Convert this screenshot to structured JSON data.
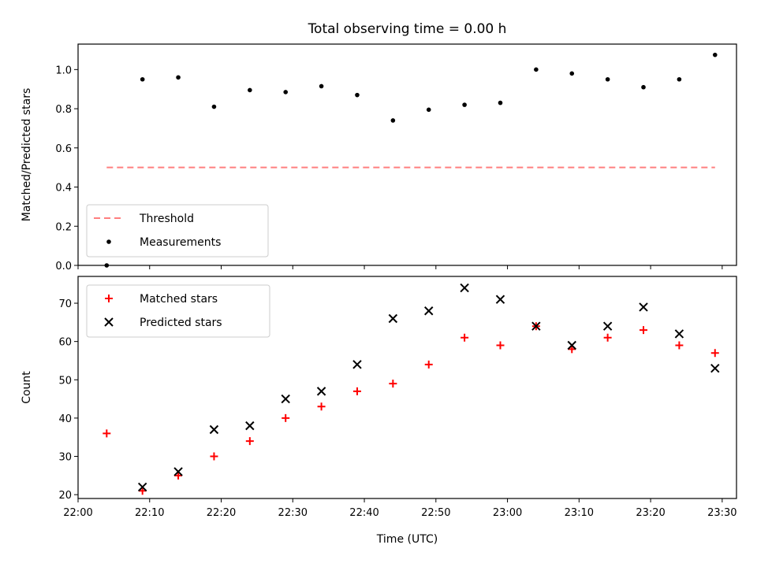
{
  "chart_data": [
    {
      "type": "scatter",
      "title": "Total observing time = 0.00 h",
      "ylabel": "Matched/Predicted stars",
      "xlabel": "",
      "xlim": [
        "22:00",
        "23:32"
      ],
      "ylim": [
        0,
        1.13
      ],
      "yticks": [
        "0.0",
        "0.2",
        "0.4",
        "0.6",
        "0.8",
        "1.0"
      ],
      "grid": false,
      "legend_position": "lower-left",
      "x": [
        "22:04",
        "22:09",
        "22:14",
        "22:19",
        "22:24",
        "22:29",
        "22:34",
        "22:39",
        "22:44",
        "22:49",
        "22:54",
        "22:59",
        "23:04",
        "23:09",
        "23:14",
        "23:19",
        "23:24",
        "23:29"
      ],
      "series": [
        {
          "name": "Threshold",
          "kind": "dashed-line",
          "color": "#ff7f7f",
          "x": [
            "22:04",
            "23:29"
          ],
          "values": [
            0.5,
            0.5
          ]
        },
        {
          "name": "Measurements",
          "kind": "dot",
          "color": "#000000",
          "values": [
            0.0,
            0.95,
            0.96,
            0.81,
            0.895,
            0.885,
            0.915,
            0.87,
            0.74,
            0.795,
            0.82,
            0.83,
            1.0,
            0.98,
            0.95,
            0.91,
            0.95,
            1.075
          ]
        }
      ]
    },
    {
      "type": "scatter",
      "title": "",
      "ylabel": "Count",
      "xlabel": "Time (UTC)",
      "xlim": [
        "22:00",
        "23:32"
      ],
      "ylim": [
        19,
        77
      ],
      "yticks": [
        "20",
        "30",
        "40",
        "50",
        "60",
        "70"
      ],
      "xticks": [
        "22:00",
        "22:10",
        "22:20",
        "22:30",
        "22:40",
        "22:50",
        "23:00",
        "23:10",
        "23:20",
        "23:30"
      ],
      "grid": false,
      "legend_position": "upper-left",
      "x": [
        "22:04",
        "22:09",
        "22:14",
        "22:19",
        "22:24",
        "22:29",
        "22:34",
        "22:39",
        "22:44",
        "22:49",
        "22:54",
        "22:59",
        "23:04",
        "23:09",
        "23:14",
        "23:19",
        "23:24",
        "23:29"
      ],
      "series": [
        {
          "name": "Matched stars",
          "kind": "plus",
          "color": "#ff0000",
          "values": [
            36,
            21,
            25,
            30,
            34,
            40,
            43,
            47,
            49,
            54,
            61,
            59,
            64,
            58,
            61,
            63,
            59,
            57
          ]
        },
        {
          "name": "Predicted stars",
          "kind": "x",
          "color": "#000000",
          "values": [
            null,
            22,
            26,
            37,
            38,
            45,
            47,
            54,
            66,
            68,
            74,
            71,
            64,
            59,
            64,
            69,
            62,
            53
          ]
        }
      ]
    }
  ]
}
